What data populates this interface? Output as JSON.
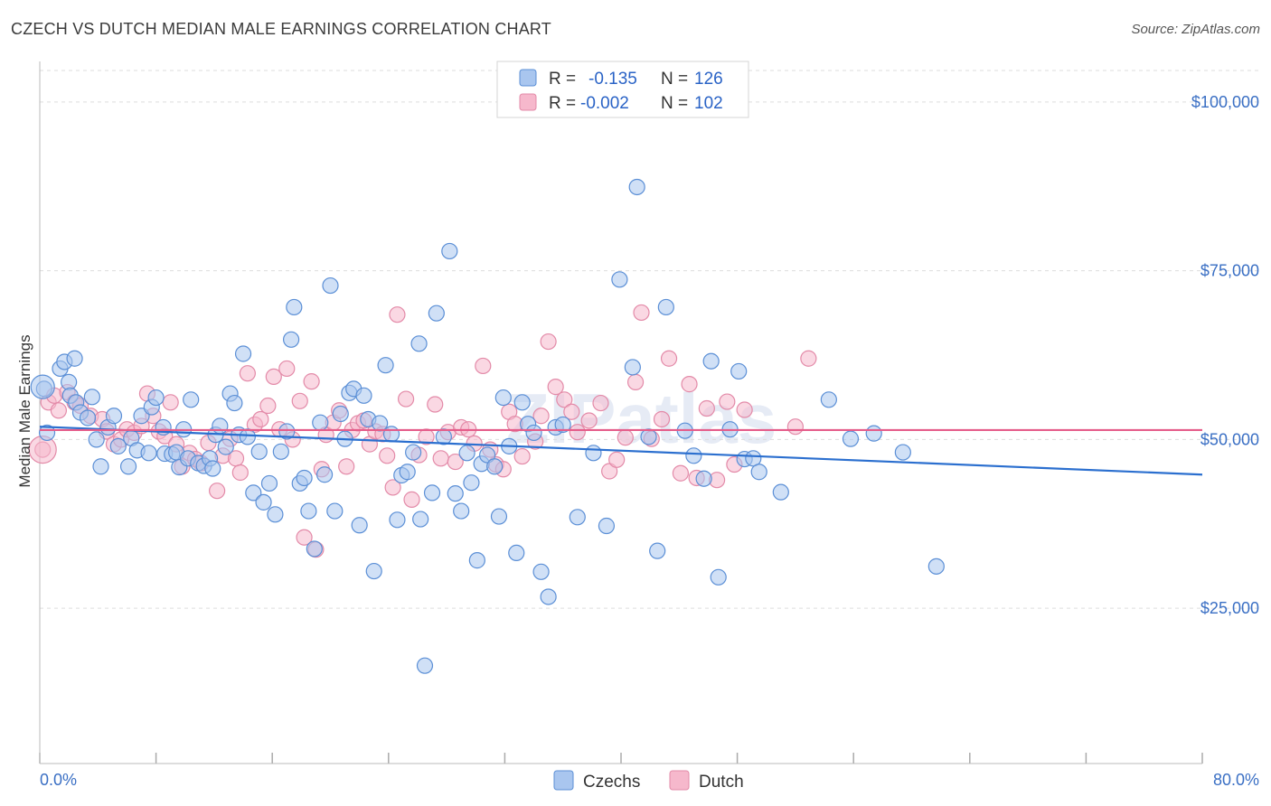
{
  "header": {
    "title": "CZECH VS DUTCH MEDIAN MALE EARNINGS CORRELATION CHART",
    "source": "Source: ZipAtlas.com"
  },
  "legend": {
    "czechs": {
      "r_label": "R =",
      "r_value": "-0.135",
      "n_label": "N =",
      "n_value": "126"
    },
    "dutch": {
      "r_label": "R =",
      "r_value": "-0.002",
      "n_label": "N =",
      "n_value": "102"
    }
  },
  "bottom_legend": {
    "czechs": "Czechs",
    "dutch": "Dutch"
  },
  "watermark": "ZIPatlas",
  "colors": {
    "czechs_fill": "#a9c6ef",
    "czechs_stroke": "#5b8fd6",
    "czechs_line": "#2b6fcf",
    "dutch_fill": "#f6b8cc",
    "dutch_stroke": "#e38aa8",
    "dutch_line": "#e55d8a",
    "grid": "#dddddd",
    "tick_label": "#3a6fc4"
  },
  "chart_data": {
    "type": "scatter",
    "title": "CZECH VS DUTCH MEDIAN MALE EARNINGS CORRELATION CHART",
    "xlabel": "",
    "ylabel": "Median Male Earnings",
    "xlim": [
      0,
      80
    ],
    "ylim": [
      2000,
      106000
    ],
    "x_tick_labels": [
      "0.0%",
      "80.0%"
    ],
    "y_ticks": [
      25000,
      50000,
      75000,
      100000
    ],
    "y_tick_labels": [
      "$25,000",
      "$50,000",
      "$75,000",
      "$100,000"
    ],
    "grid": true,
    "legend_position": "top-center",
    "series": [
      {
        "name": "Czechs",
        "r": -0.135,
        "n": 126,
        "trend": {
          "x": [
            0,
            80
          ],
          "y": [
            51900,
            44800
          ]
        },
        "points": [
          [
            0.3,
            57500
          ],
          [
            0.5,
            51000
          ],
          [
            1.4,
            60500
          ],
          [
            1.7,
            61500
          ],
          [
            2.0,
            58500
          ],
          [
            2.1,
            56500
          ],
          [
            2.4,
            62000
          ],
          [
            2.5,
            55500
          ],
          [
            2.8,
            54000
          ],
          [
            3.3,
            53200
          ],
          [
            3.6,
            56300
          ],
          [
            3.9,
            50000
          ],
          [
            4.2,
            46000
          ],
          [
            4.7,
            51800
          ],
          [
            5.1,
            53500
          ],
          [
            5.4,
            49000
          ],
          [
            6.1,
            46000
          ],
          [
            6.3,
            50200
          ],
          [
            6.7,
            48400
          ],
          [
            7.0,
            53500
          ],
          [
            7.5,
            48000
          ],
          [
            7.7,
            54800
          ],
          [
            8.0,
            56200
          ],
          [
            8.6,
            47900
          ],
          [
            8.5,
            51800
          ],
          [
            9.1,
            47800
          ],
          [
            9.4,
            48100
          ],
          [
            9.6,
            45900
          ],
          [
            9.9,
            51500
          ],
          [
            10.2,
            47200
          ],
          [
            10.4,
            55900
          ],
          [
            10.9,
            46500
          ],
          [
            11.3,
            46100
          ],
          [
            11.7,
            47200
          ],
          [
            11.9,
            45700
          ],
          [
            12.1,
            50700
          ],
          [
            12.4,
            52000
          ],
          [
            12.8,
            48900
          ],
          [
            13.1,
            56800
          ],
          [
            13.4,
            55400
          ],
          [
            13.7,
            50700
          ],
          [
            14.0,
            62700
          ],
          [
            14.3,
            50400
          ],
          [
            14.7,
            42100
          ],
          [
            15.1,
            48200
          ],
          [
            15.4,
            40700
          ],
          [
            15.8,
            43500
          ],
          [
            16.2,
            38900
          ],
          [
            16.6,
            48200
          ],
          [
            17.0,
            51200
          ],
          [
            17.3,
            64800
          ],
          [
            17.5,
            69600
          ],
          [
            17.9,
            43500
          ],
          [
            18.2,
            44300
          ],
          [
            18.5,
            39400
          ],
          [
            18.9,
            33800
          ],
          [
            19.3,
            52500
          ],
          [
            19.6,
            44800
          ],
          [
            20.0,
            72800
          ],
          [
            20.3,
            39400
          ],
          [
            20.7,
            53800
          ],
          [
            21.0,
            50100
          ],
          [
            21.3,
            56900
          ],
          [
            21.6,
            57500
          ],
          [
            22.0,
            37300
          ],
          [
            22.3,
            56500
          ],
          [
            22.6,
            53000
          ],
          [
            23.0,
            30500
          ],
          [
            23.4,
            52400
          ],
          [
            23.8,
            61000
          ],
          [
            24.2,
            50800
          ],
          [
            24.6,
            38100
          ],
          [
            24.9,
            44700
          ],
          [
            25.3,
            45200
          ],
          [
            25.7,
            48100
          ],
          [
            26.1,
            64200
          ],
          [
            26.5,
            16500
          ],
          [
            27.0,
            42100
          ],
          [
            27.3,
            68700
          ],
          [
            27.8,
            50400
          ],
          [
            28.2,
            77900
          ],
          [
            28.6,
            42000
          ],
          [
            29.0,
            39400
          ],
          [
            29.4,
            48000
          ],
          [
            29.7,
            43600
          ],
          [
            30.1,
            32100
          ],
          [
            30.4,
            46400
          ],
          [
            30.8,
            47700
          ],
          [
            31.3,
            46000
          ],
          [
            31.9,
            56200
          ],
          [
            32.3,
            49000
          ],
          [
            32.8,
            33200
          ],
          [
            33.2,
            55500
          ],
          [
            33.6,
            52300
          ],
          [
            34.0,
            51000
          ],
          [
            34.5,
            30400
          ],
          [
            35.0,
            26700
          ],
          [
            35.5,
            51800
          ],
          [
            36.0,
            52200
          ],
          [
            37.0,
            38500
          ],
          [
            39.0,
            37200
          ],
          [
            39.9,
            73700
          ],
          [
            40.8,
            60700
          ],
          [
            41.1,
            87400
          ],
          [
            41.9,
            50400
          ],
          [
            42.5,
            33500
          ],
          [
            43.1,
            69600
          ],
          [
            44.4,
            51300
          ],
          [
            45.0,
            47600
          ],
          [
            45.7,
            44200
          ],
          [
            46.2,
            61600
          ],
          [
            46.7,
            29600
          ],
          [
            47.5,
            51500
          ],
          [
            48.1,
            60100
          ],
          [
            48.5,
            47100
          ],
          [
            49.1,
            47200
          ],
          [
            49.5,
            45200
          ],
          [
            51.0,
            42200
          ],
          [
            54.3,
            55900
          ],
          [
            55.8,
            50100
          ],
          [
            57.4,
            50900
          ],
          [
            59.4,
            48100
          ],
          [
            61.7,
            31200
          ],
          [
            38.1,
            48000
          ],
          [
            26.2,
            38200
          ],
          [
            31.6,
            38600
          ]
        ]
      },
      {
        "name": "Dutch",
        "r": -0.002,
        "n": 102,
        "trend": {
          "x": [
            0,
            80
          ],
          "y": [
            51400,
            51400
          ]
        },
        "points": [
          [
            0.2,
            48500
          ],
          [
            0.6,
            55500
          ],
          [
            1.0,
            56500
          ],
          [
            1.3,
            54300
          ],
          [
            1.9,
            57000
          ],
          [
            2.4,
            55500
          ],
          [
            2.8,
            55000
          ],
          [
            3.5,
            53500
          ],
          [
            4.3,
            53000
          ],
          [
            4.6,
            51200
          ],
          [
            5.1,
            49300
          ],
          [
            5.6,
            50000
          ],
          [
            6.0,
            51500
          ],
          [
            6.5,
            51000
          ],
          [
            7.0,
            52000
          ],
          [
            7.4,
            56800
          ],
          [
            7.8,
            53500
          ],
          [
            8.2,
            51200
          ],
          [
            8.6,
            50500
          ],
          [
            9.0,
            55500
          ],
          [
            9.4,
            49300
          ],
          [
            9.8,
            46000
          ],
          [
            10.3,
            48000
          ],
          [
            10.7,
            47100
          ],
          [
            11.1,
            46500
          ],
          [
            11.6,
            49500
          ],
          [
            12.2,
            42400
          ],
          [
            12.6,
            47600
          ],
          [
            13.1,
            50100
          ],
          [
            13.5,
            47200
          ],
          [
            13.8,
            45100
          ],
          [
            14.3,
            59800
          ],
          [
            14.8,
            52200
          ],
          [
            15.2,
            53000
          ],
          [
            15.7,
            55000
          ],
          [
            16.1,
            59300
          ],
          [
            16.5,
            51500
          ],
          [
            17.0,
            60500
          ],
          [
            17.4,
            50000
          ],
          [
            17.9,
            55700
          ],
          [
            18.2,
            35500
          ],
          [
            18.7,
            58600
          ],
          [
            19.0,
            33700
          ],
          [
            19.4,
            45600
          ],
          [
            19.7,
            50700
          ],
          [
            20.2,
            52500
          ],
          [
            20.6,
            54300
          ],
          [
            21.1,
            46000
          ],
          [
            21.5,
            51400
          ],
          [
            21.9,
            52400
          ],
          [
            22.3,
            52800
          ],
          [
            22.7,
            49300
          ],
          [
            23.1,
            51200
          ],
          [
            23.6,
            50800
          ],
          [
            23.9,
            47600
          ],
          [
            24.3,
            42900
          ],
          [
            24.6,
            68500
          ],
          [
            25.2,
            56000
          ],
          [
            25.6,
            41100
          ],
          [
            26.1,
            47700
          ],
          [
            26.6,
            50400
          ],
          [
            27.2,
            55200
          ],
          [
            27.6,
            47200
          ],
          [
            28.1,
            51100
          ],
          [
            28.6,
            46700
          ],
          [
            29.0,
            51800
          ],
          [
            29.5,
            51500
          ],
          [
            29.9,
            49400
          ],
          [
            30.5,
            60900
          ],
          [
            31.0,
            48500
          ],
          [
            31.4,
            46300
          ],
          [
            31.9,
            45600
          ],
          [
            32.3,
            54100
          ],
          [
            32.7,
            52300
          ],
          [
            33.2,
            47500
          ],
          [
            34.1,
            49700
          ],
          [
            34.5,
            53500
          ],
          [
            35.0,
            64500
          ],
          [
            35.5,
            57800
          ],
          [
            36.1,
            55900
          ],
          [
            36.6,
            54100
          ],
          [
            37.0,
            51100
          ],
          [
            37.8,
            52800
          ],
          [
            38.6,
            55400
          ],
          [
            39.2,
            45300
          ],
          [
            39.7,
            47000
          ],
          [
            40.3,
            50300
          ],
          [
            41.0,
            58500
          ],
          [
            41.4,
            68800
          ],
          [
            42.1,
            50100
          ],
          [
            42.8,
            53000
          ],
          [
            43.3,
            62000
          ],
          [
            44.1,
            45000
          ],
          [
            44.7,
            58200
          ],
          [
            45.2,
            44300
          ],
          [
            45.9,
            54600
          ],
          [
            46.6,
            44000
          ],
          [
            47.3,
            55600
          ],
          [
            47.8,
            46300
          ],
          [
            48.5,
            54400
          ],
          [
            52.0,
            51900
          ],
          [
            52.9,
            62000
          ]
        ]
      }
    ]
  }
}
